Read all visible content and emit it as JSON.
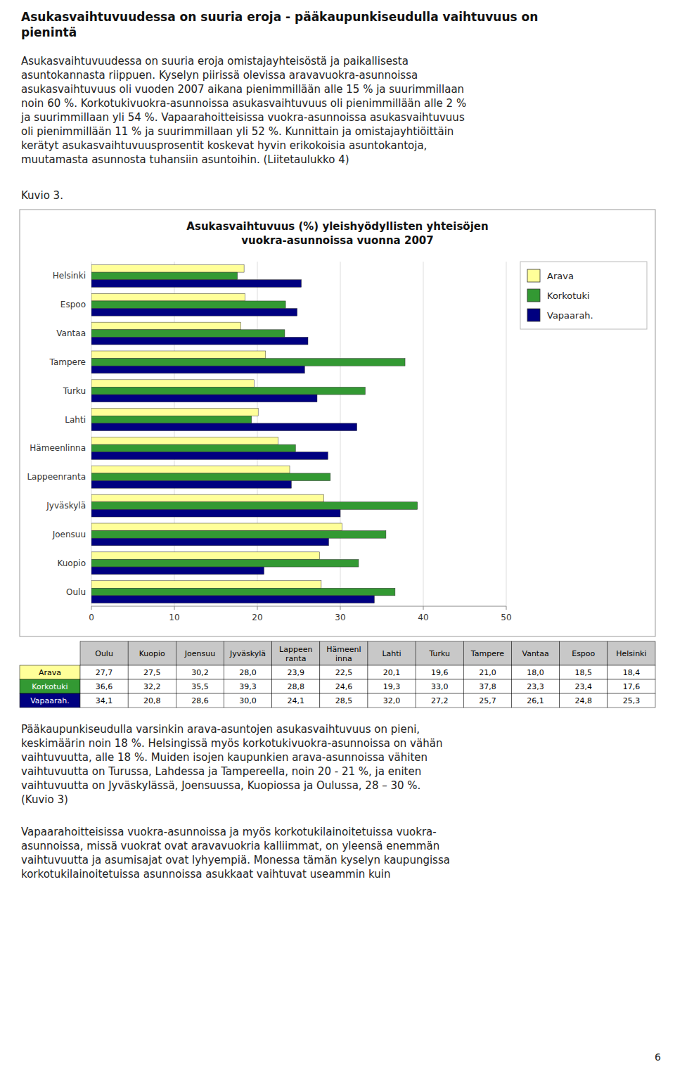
{
  "page_title": [
    "Asukasvaihtuvuudessa on suuria eroja - pääkaupunkiseudulla vaihtuvuus on",
    "pienintä"
  ],
  "body_text_1": [
    "Asukasvaihtuvuudessa on suuria eroja omistajayhteisöstä ja paikallisesta",
    "asuntokannasta riippuen. Kyselyn piirissä olevissa aravavuokra-asunnoissa",
    "asukasvaihtuvuus oli vuoden 2007 aikana pienimmillään alle 15 % ja suurimmillaan",
    "noin 60 %. Korkotukivuokra-asunnoissa asukasvaihtuvuus oli pienimmillään alle 2 %",
    "ja suurimmillaan yli 54 %. Vapaarahoitteisissa vuokra-asunnoissa asukasvaihtuvuus",
    "oli pienimmillään 11 % ja suurimmillaan yli 52 %. Kunnittain ja omistajayhtiöittäin",
    "kerätyt asukasvaihtuvuusprosentit koskevat hyvin erikokoisia asuntokantoja,",
    "muutamasta asunnosta tuhansiin asuntoihin. (Liitetaulukko 4)"
  ],
  "figure_label": "Kuvio 3.",
  "chart_data": {
    "type": "bar",
    "orientation": "horizontal",
    "title": "Asukasvaihtuvuus (%) yleishyödyllisten yhteisöjen\nvuokra-asunnoissa vuonna 2007",
    "categories": [
      "Helsinki",
      "Espoo",
      "Vantaa",
      "Tampere",
      "Turku",
      "Lahti",
      "Hämeenlinna",
      "Lappeenranta",
      "Jyväskylä",
      "Joensuu",
      "Kuopio",
      "Oulu"
    ],
    "series": [
      {
        "name": "Arava",
        "color": "#FFFF99",
        "values": [
          18.4,
          18.5,
          18.0,
          21.0,
          19.6,
          20.1,
          22.5,
          23.9,
          28.0,
          30.2,
          27.5,
          27.7
        ]
      },
      {
        "name": "Korkotuki",
        "color": "#339933",
        "values": [
          17.6,
          23.4,
          23.3,
          37.8,
          33.0,
          19.3,
          24.6,
          28.8,
          39.3,
          35.5,
          32.2,
          36.6
        ]
      },
      {
        "name": "Vapaarah.",
        "color": "#000080",
        "values": [
          25.3,
          24.8,
          26.1,
          25.7,
          27.2,
          32.0,
          28.5,
          24.1,
          30.0,
          28.6,
          20.8,
          34.1
        ]
      }
    ],
    "xlim": [
      0,
      50
    ],
    "xticks": [
      0,
      10,
      20,
      30,
      40,
      50
    ],
    "grid": true,
    "legend": "upper right",
    "table": {
      "columns": [
        "Oulu",
        "Kuopio",
        "Joensuu",
        "Jyväskylä",
        "Lappeen\nranta",
        "Hämeenl\ninna",
        "Lahti",
        "Turku",
        "Tampere",
        "Vantaa",
        "Espoo",
        "Helsinki"
      ],
      "rows": [
        {
          "name": "Arava",
          "color": "#FFFF99",
          "values": [
            27.7,
            27.5,
            30.2,
            28.0,
            23.9,
            22.5,
            20.1,
            19.6,
            21.0,
            18.0,
            18.5,
            18.4
          ],
          "value_labels": [
            "27,7",
            "27,5",
            "30,2",
            "28,0",
            "23,9",
            "22,5",
            "20,1",
            "19,6",
            "21,0",
            "18,0",
            "18,5",
            "18,4"
          ]
        },
        {
          "name": "Korkotuki",
          "color": "#339933",
          "values": [
            36.6,
            32.2,
            35.5,
            39.3,
            28.8,
            24.6,
            19.3,
            33.0,
            37.8,
            23.3,
            23.4,
            17.6
          ],
          "value_labels": [
            "36,6",
            "32,2",
            "35,5",
            "39,3",
            "28,8",
            "24,6",
            "19,3",
            "33,0",
            "37,8",
            "23,3",
            "23,4",
            "17,6"
          ]
        },
        {
          "name": "Vapaarah.",
          "color": "#000080",
          "values": [
            34.1,
            20.8,
            28.6,
            30.0,
            24.1,
            28.5,
            32.0,
            27.2,
            25.7,
            26.1,
            24.8,
            25.3
          ],
          "value_labels": [
            "34,1",
            "20,8",
            "28,6",
            "30,0",
            "24,1",
            "28,5",
            "32,0",
            "27,2",
            "25,7",
            "26,1",
            "24,8",
            "25,3"
          ]
        }
      ]
    }
  },
  "body_text_2": [
    "Pääkaupunkiseudulla varsinkin arava-asuntojen asukasvaihtuvuus on pieni,",
    "keskimäärin noin 18 %. Helsingissä myös korkotukivuokra-asunnoissa on vähän",
    "vaihtuvuutta, alle 18 %. Muiden isojen kaupunkien arava-asunnoissa vähiten",
    "vaihtuvuutta on Turussa, Lahdessa  ja Tampereella, noin 20 - 21 %, ja eniten",
    "vaihtuvuutta on Jyväskylässä, Joensuussa, Kuopiossa ja Oulussa, 28 – 30 %.",
    "(Kuvio 3)"
  ],
  "body_text_3": [
    "Vapaarahoitteisissa vuokra-asunnoissa ja myös korkotukilainoitetuissa vuokra-",
    "asunnoissa, missä vuokrat ovat aravavuokria kalliimmat, on yleensä enemmän",
    "vaihtuvuutta ja asumisajat ovat lyhyempiä. Monessa tämän kyselyn kaupungissa",
    "korkotukilainoitetuissa asunnoissa asukkaat vaihtuvat useammin kuin"
  ],
  "page_number": "6"
}
